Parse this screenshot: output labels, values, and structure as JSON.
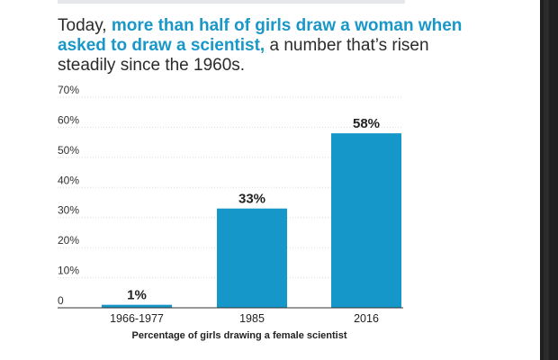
{
  "headline": {
    "prefix": "Today, ",
    "highlight": "more than half of girls draw a woman when asked to draw a scientist,",
    "suffix": " a number that’s risen steadily since the 1960s."
  },
  "colors": {
    "bar": "#1597c9",
    "highlight": "#1a97c9",
    "grid": "#dcdcdc",
    "axis": "#333333"
  },
  "chart_data": {
    "type": "bar",
    "categories": [
      "1966-1977",
      "1985",
      "2016"
    ],
    "values": [
      1,
      33,
      58
    ],
    "data_labels": [
      "1%",
      "33%",
      "58%"
    ],
    "y_ticks": [
      0,
      10,
      20,
      30,
      40,
      50,
      60,
      70
    ],
    "y_tick_labels": [
      "0",
      "10%",
      "20%",
      "30%",
      "40%",
      "50%",
      "60%",
      "70%"
    ],
    "ylim": [
      0,
      70
    ],
    "xlabel": "Percentage of girls drawing a female scientist",
    "ylabel": "",
    "title": "",
    "grid": true,
    "legend": "none"
  }
}
